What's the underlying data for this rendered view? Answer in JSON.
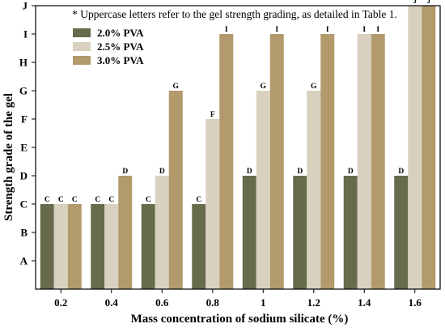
{
  "chart_data": {
    "type": "bar",
    "annotation": "* Uppercase letters refer to the gel strength grading, as detailed in Table 1.",
    "xlabel": "Mass concentration of sodium silicate (%)",
    "ylabel": "Strength grade of the gel",
    "categories": [
      "0.2",
      "0.4",
      "0.6",
      "0.8",
      "1",
      "1.2",
      "1.4",
      "1.6"
    ],
    "y_grades": [
      "A",
      "B",
      "C",
      "D",
      "E",
      "F",
      "G",
      "H",
      "I",
      "J"
    ],
    "ylim": [
      0,
      10
    ],
    "legend_position": "top-left",
    "series": [
      {
        "name": "2.0% PVA",
        "color": "#676B4C",
        "values": [
          "C",
          "C",
          "C",
          "C",
          "D",
          "D",
          "D",
          "D"
        ]
      },
      {
        "name": "2.5% PVA",
        "color": "#D9D1C0",
        "values": [
          "C",
          "C",
          "D",
          "F",
          "G",
          "G",
          "I",
          "J"
        ]
      },
      {
        "name": "3.0% PVA",
        "color": "#B29A6D",
        "values": [
          "C",
          "D",
          "G",
          "I",
          "I",
          "I",
          "I",
          "J"
        ]
      }
    ]
  }
}
